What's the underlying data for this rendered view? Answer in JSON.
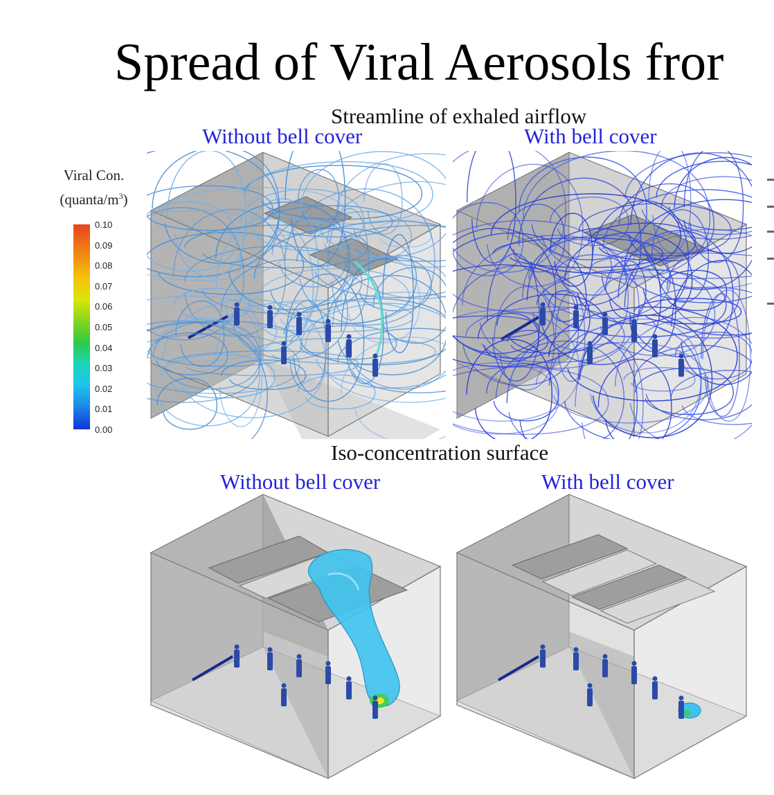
{
  "title": "Spread of Viral Aerosols fror",
  "sections": {
    "streamline": "Streamline of exhaled airflow",
    "iso": "Iso-concentration surface"
  },
  "labels": {
    "without": "Without bell cover",
    "with": "With bell cover"
  },
  "legend": {
    "title_line1": "Viral Con.",
    "title_line2_prefix": "(quanta/m",
    "title_line2_sup": "3",
    "title_line2_suffix": ")",
    "ticks": [
      "0.10",
      "0.09",
      "0.08",
      "0.07",
      "0.06",
      "0.05",
      "0.04",
      "0.03",
      "0.02",
      "0.01",
      "0.00"
    ]
  },
  "colors": {
    "label_blue": "#2323d8",
    "stream_light": "#4a8fd6",
    "stream_dark": "#2a3fd6",
    "plume": "#3fc3ee"
  }
}
